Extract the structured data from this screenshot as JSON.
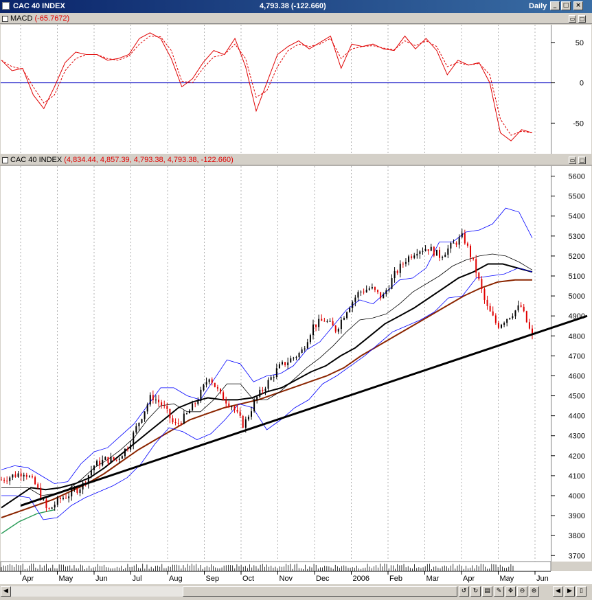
{
  "window": {
    "title": "CAC 40 INDEX",
    "price_summary": "4,793.38 (-122.660)",
    "period": "Daily",
    "minimize_label": "_",
    "maximize_label": "□",
    "close_label": "×"
  },
  "macd_pane": {
    "name": "MACD",
    "value": "(-65.7672)"
  },
  "price_pane": {
    "name": "CAC 40 INDEX",
    "value": "(4,834.44, 4,857.39, 4,793.38, 4,793.38, -122.660)"
  },
  "colors": {
    "macd_line": "#e00000",
    "signal_line": "#e00000",
    "zero_line": "#0000c0",
    "bollinger": "#0000ff",
    "ma_short": "#000000",
    "ma_mid": "#000000",
    "ma_long": "#8b2500",
    "ma_green": "#2e9e5b",
    "trendline": "#000000",
    "candle_up": "#000000",
    "candle_down": "#e00000"
  },
  "chart_data": [
    {
      "type": "line",
      "title": "MACD",
      "yticks": [
        50,
        0,
        -50
      ],
      "ylim": [
        -88,
        72
      ],
      "grid": "vertical dotted",
      "series": [
        {
          "name": "MACD",
          "values": [
            28,
            15,
            18,
            -15,
            -32,
            -5,
            25,
            38,
            35,
            35,
            28,
            30,
            35,
            55,
            62,
            55,
            30,
            -5,
            5,
            25,
            40,
            35,
            55,
            20,
            -35,
            0,
            35,
            45,
            52,
            42,
            50,
            58,
            18,
            48,
            45,
            48,
            42,
            40,
            58,
            42,
            55,
            40,
            10,
            28,
            22,
            25,
            0,
            -62,
            -72,
            -58,
            -62
          ]
        },
        {
          "name": "Signal",
          "values": [
            28,
            20,
            17,
            -5,
            -25,
            -15,
            15,
            30,
            35,
            35,
            30,
            28,
            33,
            48,
            58,
            57,
            40,
            2,
            0,
            18,
            32,
            35,
            48,
            30,
            -18,
            -10,
            20,
            40,
            48,
            45,
            48,
            55,
            30,
            42,
            45,
            46,
            43,
            41,
            52,
            46,
            52,
            45,
            20,
            25,
            22,
            24,
            10,
            -45,
            -65,
            -60,
            -62
          ]
        }
      ]
    },
    {
      "type": "line",
      "title": "CAC 40 INDEX",
      "yticks": [
        5600,
        5500,
        5400,
        5300,
        5200,
        5100,
        5000,
        4900,
        4800,
        4700,
        4600,
        4500,
        4400,
        4300,
        4200,
        4100,
        4000,
        3900,
        3800,
        3700
      ],
      "ylim": [
        3670,
        5650
      ],
      "x_tick_labels": [
        "Apr",
        "May",
        "Jun",
        "Jul",
        "Aug",
        "Sep",
        "Oct",
        "Nov",
        "Dec",
        "2006",
        "Feb",
        "Mar",
        "Apr",
        "May",
        "Jun"
      ],
      "grid": "vertical dotted",
      "series": [
        {
          "name": "Close",
          "values": [
            4080,
            4100,
            4120,
            4050,
            3920,
            3980,
            4010,
            4050,
            4150,
            4180,
            4180,
            4250,
            4380,
            4500,
            4450,
            4350,
            4400,
            4480,
            4600,
            4500,
            4450,
            4350,
            4480,
            4560,
            4640,
            4680,
            4720,
            4850,
            4880,
            4830,
            4940,
            5020,
            5040,
            4990,
            5100,
            5180,
            5230,
            5240,
            5200,
            5250,
            5300,
            5150,
            4950,
            4850,
            4900,
            4950,
            4793
          ]
        },
        {
          "name": "Bollinger Upper",
          "values": [
            4130,
            4150,
            4140,
            4100,
            4060,
            4070,
            4160,
            4220,
            4240,
            4300,
            4360,
            4450,
            4540,
            4540,
            4500,
            4480,
            4580,
            4680,
            4660,
            4570,
            4600,
            4610,
            4650,
            4730,
            4770,
            4850,
            4930,
            4980,
            4960,
            5020,
            5080,
            5090,
            5140,
            5270,
            5270,
            5320,
            5330,
            5360,
            5440,
            5420,
            5290
          ]
        },
        {
          "name": "Bollinger Lower",
          "values": [
            4000,
            4000,
            3990,
            3880,
            3890,
            3950,
            3990,
            4020,
            4050,
            4090,
            4160,
            4260,
            4340,
            4320,
            4280,
            4310,
            4380,
            4460,
            4440,
            4330,
            4380,
            4440,
            4480,
            4560,
            4600,
            4650,
            4700,
            4760,
            4820,
            4850,
            4880,
            4920,
            4990,
            5000,
            5090,
            5100,
            5110,
            5140,
            5120
          ]
        },
        {
          "name": "MA Short",
          "values": [
            4040,
            4040,
            4040,
            4000,
            4010,
            4030,
            4080,
            4140,
            4180,
            4230,
            4290,
            4380,
            4450,
            4460,
            4420,
            4420,
            4480,
            4560,
            4560,
            4480,
            4480,
            4520,
            4580,
            4640,
            4690,
            4750,
            4820,
            4880,
            4890,
            4910,
            4960,
            5020,
            5060,
            5100,
            5150,
            5180,
            5200,
            5210,
            5200,
            5170,
            5130
          ]
        },
        {
          "name": "MA Mid",
          "values": [
            3940,
            3990,
            4040,
            4030,
            4040,
            4060,
            4090,
            4140,
            4200,
            4260,
            4320,
            4380,
            4440,
            4470,
            4490,
            4480,
            4480,
            4490,
            4520,
            4540,
            4580,
            4620,
            4650,
            4700,
            4740,
            4800,
            4860,
            4900,
            4940,
            4990,
            5040,
            5090,
            5120,
            5160,
            5160,
            5140,
            5120
          ]
        },
        {
          "name": "MA Long",
          "values": [
            3890,
            3920,
            3950,
            3980,
            4020,
            4060,
            4110,
            4170,
            4230,
            4280,
            4330,
            4380,
            4410,
            4440,
            4460,
            4480,
            4510,
            4540,
            4570,
            4600,
            4640,
            4700,
            4750,
            4800,
            4850,
            4900,
            4950,
            5000,
            5040,
            5070,
            5080,
            5080
          ]
        },
        {
          "name": "MA Green",
          "values": [
            3810,
            3840,
            3870,
            3890,
            3910,
            3920,
            3930
          ]
        },
        {
          "name": "Trendline",
          "values": [
            3950,
            4900
          ]
        }
      ]
    }
  ]
}
